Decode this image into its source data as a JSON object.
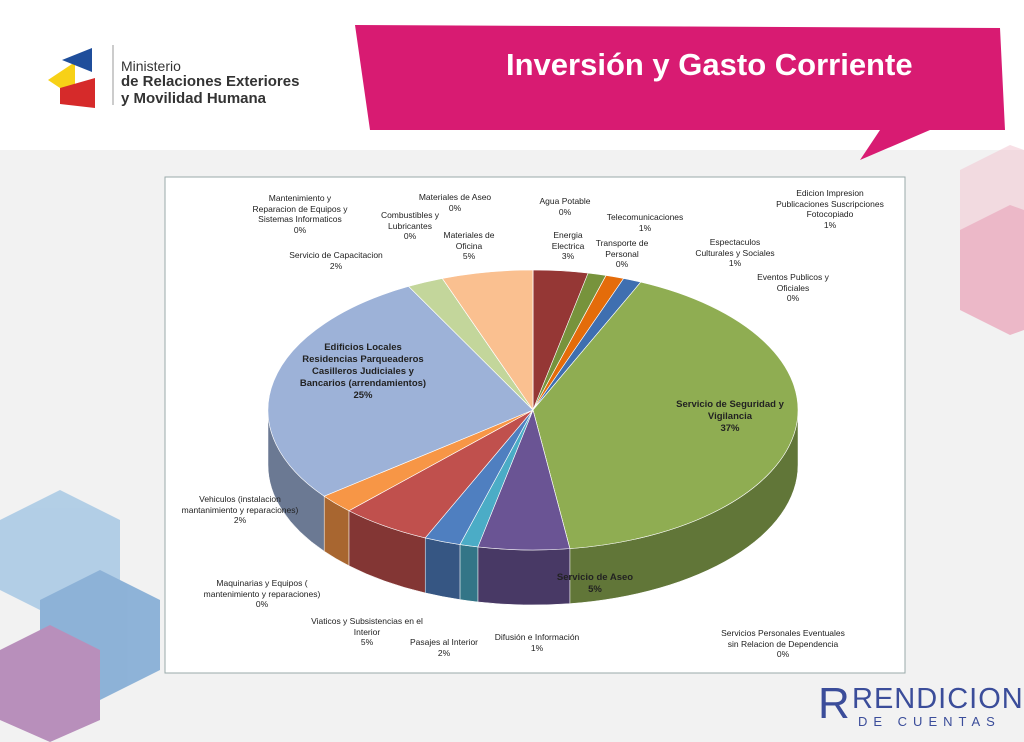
{
  "header": {
    "ministry": [
      "Ministerio",
      "de Relaciones Exteriores",
      "y Movilidad Humana"
    ],
    "title": "Inversión y Gasto Corriente"
  },
  "footer": {
    "logo": [
      "RENDICION",
      "DE CUENTAS"
    ]
  },
  "chart_data": {
    "type": "pie3d",
    "categories": [
      "Agua Potable",
      "Energia\nElectrica",
      "Telecomunicaciones",
      "Transporte de\nPersonal",
      "Edicion Impresion\nPublicaciones Suscripciones\nFotocopiado",
      "Espectaculos\nCulturales y Sociales",
      "Eventos Publicos y\nOficiales",
      "Servicio de Seguridad y\nVigilancia",
      "Servicios Personales Eventuales\nsin Relacion de Dependencia",
      "Servicio de Aseo",
      "Difusión e Información",
      "Pasajes al Interior",
      "Viaticos y Subsistencias en el\nInterior",
      "Maquinarias y Equipos (\nmantenimiento y reparaciones)",
      "Vehiculos (instalacion\nmantanimiento y reparaciones)",
      "Edificios  Locales\nResidencias Parqueaderos\nCasilleros Judiciales y\nBancarios (arrendamientos)",
      "Servicio de Capacitacion",
      "Mantenimiento y\nReparacion de Equipos y\nSistemas Informaticos",
      "Combustibles y\nLubricantes",
      "Materiales de\nOficina",
      "Materiales de Aseo"
    ],
    "values": [
      0,
      3,
      1,
      0,
      1,
      1,
      0,
      37,
      0,
      5,
      1,
      2,
      5,
      0,
      2,
      25,
      2,
      0,
      0,
      5,
      0
    ],
    "value_labels": [
      "0%",
      "3%",
      "1%",
      "0%",
      "1%",
      "1%",
      "0%",
      "37%",
      "0%",
      "5%",
      "1%",
      "2%",
      "5%",
      "0%",
      "2%",
      "25%",
      "2%",
      "0%",
      "0%",
      "5%",
      "0%"
    ],
    "colors": [
      "#c6d9f1",
      "#953735",
      "#77933c",
      "#4f81bd",
      "#e46c0a",
      "#3f6fb0",
      "#4bacc6",
      "#8fad52",
      "#4bacc6",
      "#6a5494",
      "#4bacc6",
      "#4f7fc0",
      "#c0504d",
      "#4bacc6",
      "#f79646",
      "#9db2d8",
      "#c3d69b",
      "#b7c9e6",
      "#8db3e2",
      "#fac090",
      "#c6d9f1"
    ]
  }
}
